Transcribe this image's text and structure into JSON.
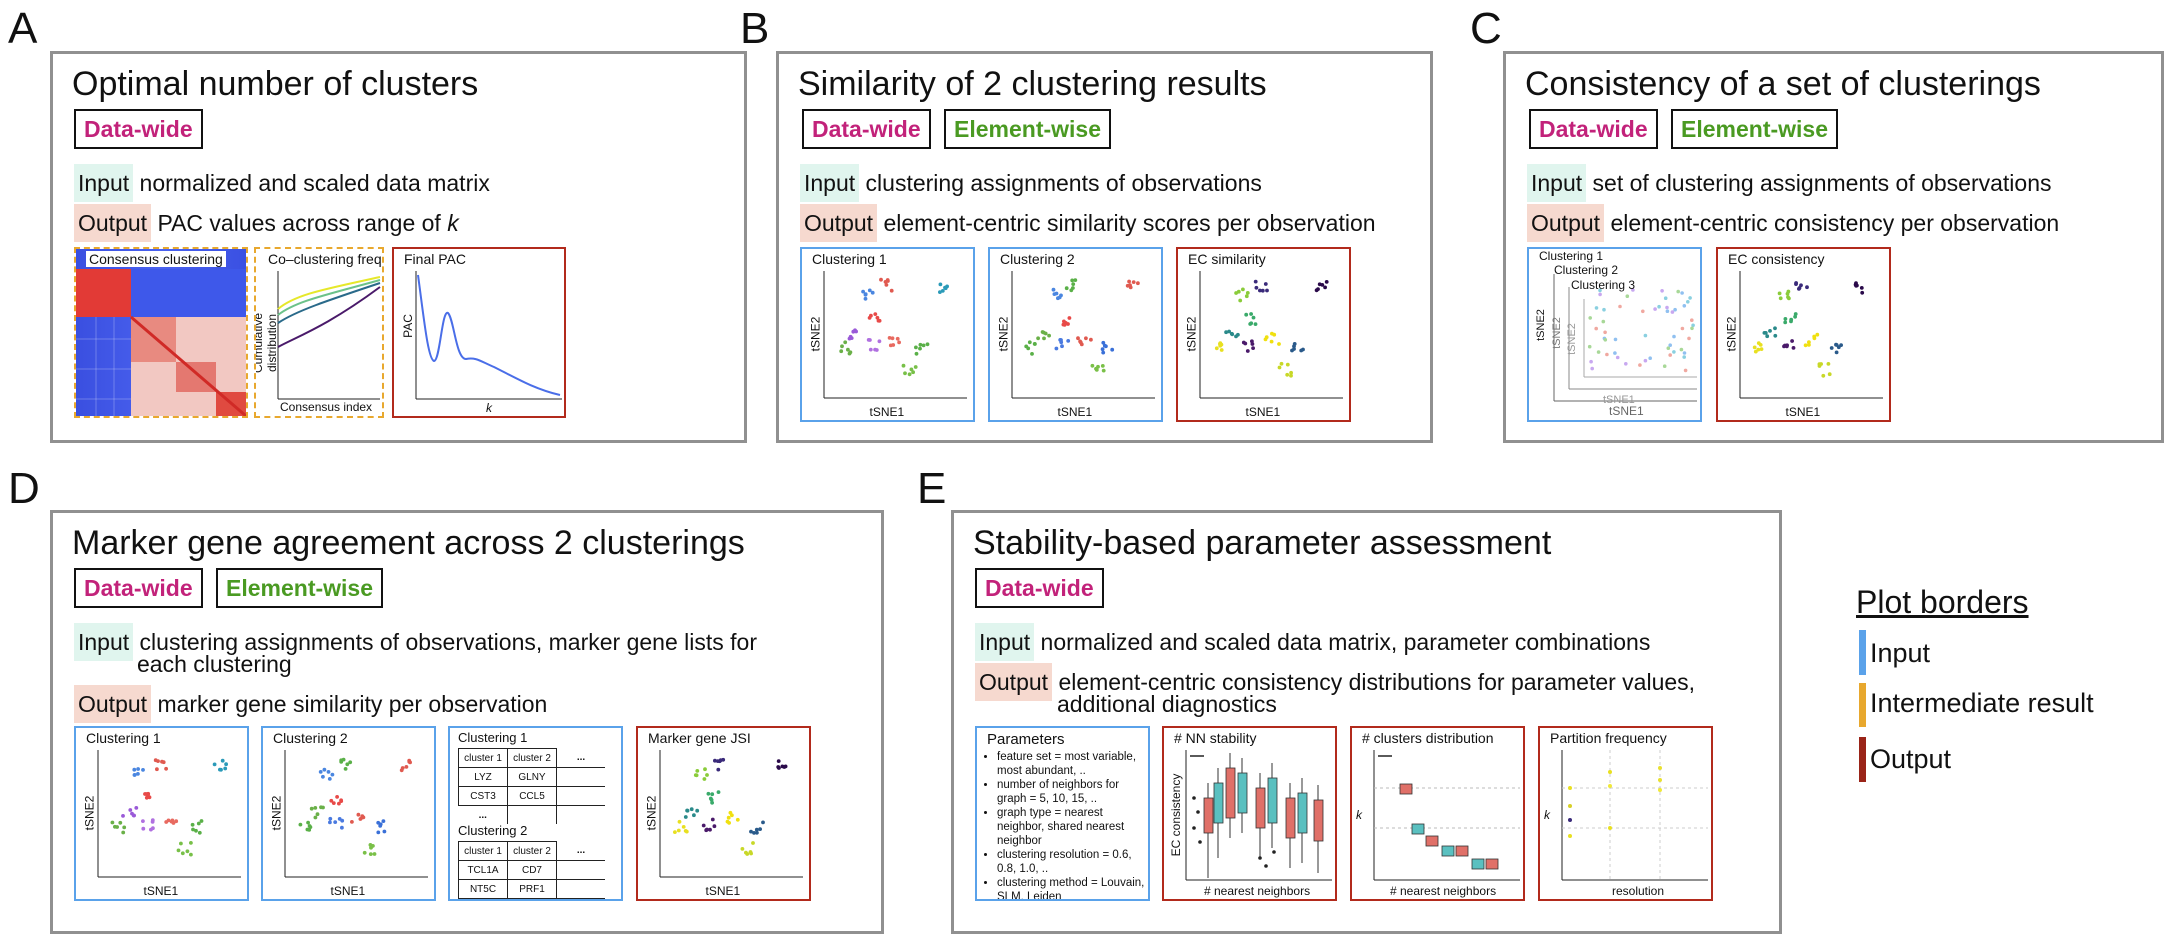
{
  "panels": {
    "A": {
      "letter": "A",
      "title": "Optimal number of clusters",
      "tags": [
        "Data-wide"
      ],
      "input_label": "Input",
      "input_text": "normalized and scaled data matrix",
      "output_label": "Output",
      "output_text": "PAC values across range of ",
      "output_k": "k",
      "plots": {
        "consensus": {
          "title": "Consensus clustering"
        },
        "coclust": {
          "title": "Co–clustering frequency",
          "xlabel": "Consensus index",
          "ylabel": "Cumulative distribution"
        },
        "pac": {
          "title": "Final PAC",
          "xlabel": "k",
          "ylabel": "PAC"
        }
      }
    },
    "B": {
      "letter": "B",
      "title": "Similarity of 2 clustering results",
      "tags": [
        "Data-wide",
        "Element-wise"
      ],
      "input_label": "Input",
      "input_text": "clustering assignments of observations",
      "output_label": "Output",
      "output_text": "element-centric similarity scores per observation",
      "plots": [
        {
          "title": "Clustering 1",
          "xlabel": "tSNE1",
          "ylabel": "tSNE2"
        },
        {
          "title": "Clustering 2",
          "xlabel": "tSNE1",
          "ylabel": "tSNE2"
        },
        {
          "title": "EC similarity",
          "xlabel": "tSNE1",
          "ylabel": "tSNE2"
        }
      ]
    },
    "C": {
      "letter": "C",
      "title": "Consistency of a set of clusterings",
      "tags": [
        "Data-wide",
        "Element-wise"
      ],
      "input_label": "Input",
      "input_text": "set of clustering assignments of observations",
      "output_label": "Output",
      "output_text": "element-centric consistency per observation",
      "plots": {
        "stack": {
          "titles": [
            "Clustering 1",
            "Clustering 2",
            "Clustering 3"
          ],
          "xlabel": "tSNE1",
          "ylabel": "tSNE2"
        },
        "ec": {
          "title": "EC consistency",
          "xlabel": "tSNE1",
          "ylabel": "tSNE2"
        }
      }
    },
    "D": {
      "letter": "D",
      "title": "Marker gene agreement across 2 clusterings",
      "tags": [
        "Data-wide",
        "Element-wise"
      ],
      "input_label": "Input",
      "input_text_1": "clustering assignments of observations, marker gene lists for",
      "input_text_2": "each clustering",
      "output_label": "Output",
      "output_text": "marker gene similarity per observation",
      "plots": {
        "c1": {
          "title": "Clustering 1",
          "xlabel": "tSNE1",
          "ylabel": "tSNE2"
        },
        "c2": {
          "title": "Clustering 2",
          "xlabel": "tSNE1",
          "ylabel": "tSNE2"
        },
        "jsi": {
          "title": "Marker gene JSI",
          "xlabel": "tSNE1",
          "ylabel": "tSNE2"
        }
      },
      "tables": [
        {
          "title": "Clustering 1",
          "headers": [
            "cluster 1",
            "cluster 2",
            "..."
          ],
          "rows": [
            [
              "LYZ",
              "GLNY"
            ],
            [
              "CST3",
              "CCL5"
            ]
          ]
        },
        {
          "title": "Clustering 2",
          "headers": [
            "cluster 1",
            "cluster 2",
            "..."
          ],
          "rows": [
            [
              "TCL1A",
              "CD7"
            ],
            [
              "NT5C",
              "PRF1"
            ]
          ]
        }
      ]
    },
    "E": {
      "letter": "E",
      "title": "Stability-based parameter assessment",
      "tags": [
        "Data-wide"
      ],
      "input_label": "Input",
      "input_text": "normalized and scaled data matrix, parameter combinations",
      "output_label": "Output",
      "output_text_1": "element-centric consistency distributions for parameter values,",
      "output_text_2": "additional diagnostics",
      "parameters": {
        "title": "Parameters",
        "items": [
          "feature set = most variable, most abundant, ..",
          "number of neighbors for graph = 5, 10, 15, ..",
          "graph type = nearest neighbor, shared nearest neighbor",
          "clustering resolution = 0.6, 0.8, 1.0, ..",
          "clustering method = Louvain, SLM, Leiden",
          "..."
        ]
      },
      "plots": {
        "nn": {
          "title": "# NN stability",
          "xlabel": "# nearest neighbors",
          "ylabel": "EC consistency"
        },
        "clusters": {
          "title": "# clusters distribution",
          "xlabel": "# nearest neighbors",
          "ylabel": "k"
        },
        "partition": {
          "title": "Partition frequency",
          "xlabel": "resolution",
          "ylabel": "k"
        }
      }
    }
  },
  "legend": {
    "title": "Plot borders",
    "items": [
      {
        "label": "Input",
        "color": "#5aa2ea"
      },
      {
        "label": "Intermediate result",
        "color": "#e8a82e"
      },
      {
        "label": "Output",
        "color": "#b22a1c"
      }
    ]
  },
  "colors": {
    "datawide": "#c2227a",
    "elementwise": "#4a9a22",
    "input_bg": "#e0f5ee",
    "output_bg": "#f6d9cf"
  }
}
